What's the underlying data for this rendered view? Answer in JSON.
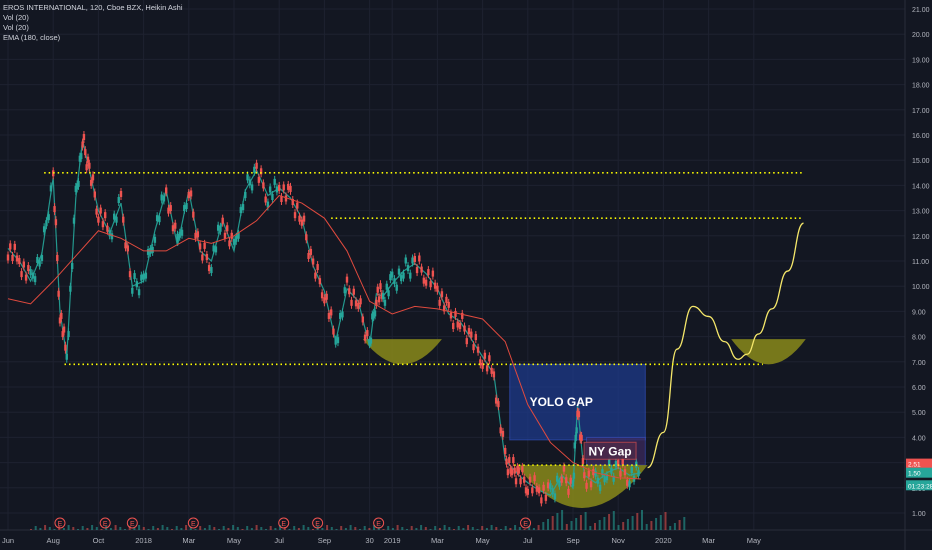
{
  "legend": {
    "symbol_line": "EROS INTERNATIONAL, 120, Cboe BZX, Heikin Ashi",
    "indicators": [
      "Vol (20)",
      "Vol (20)",
      "EMA (180, close)"
    ]
  },
  "chart_data": {
    "type": "line",
    "title": "",
    "ylim": [
      0,
      21.5
    ],
    "y_ticks": [
      "21.00",
      "20.00",
      "19.00",
      "18.00",
      "17.00",
      "16.00",
      "15.00",
      "14.00",
      "13.00",
      "12.00",
      "11.00",
      "10.00",
      "9.00",
      "8.00",
      "7.00",
      "6.00",
      "5.00",
      "4.00",
      "3.00",
      "2.00",
      "1.00"
    ],
    "y_tick_values": [
      21,
      20,
      19,
      18,
      17,
      16,
      15,
      14,
      13,
      12,
      11,
      10,
      9,
      8,
      7,
      6,
      5,
      4,
      3,
      2,
      1
    ],
    "x_ticks": [
      "Jun",
      "Aug",
      "Oct",
      "2018",
      "Mar",
      "May",
      "Jul",
      "Sep",
      "30",
      "2019",
      "Mar",
      "May",
      "Jul",
      "Sep",
      "Nov",
      "2020",
      "Mar",
      "May"
    ],
    "x_tick_index": [
      0,
      2,
      4,
      6,
      8,
      10,
      12,
      14,
      16,
      17,
      19,
      21,
      23,
      25,
      27,
      29,
      31,
      33
    ],
    "price_labels": [
      {
        "text": "2.51",
        "color": "#ef5350"
      },
      {
        "text": "1.50",
        "color": "#26a69a"
      },
      {
        "text": "01:23:28",
        "color": "#26a69a"
      }
    ],
    "earnings_markers": [
      "E",
      "E",
      "E",
      "E",
      "E",
      "E",
      "E",
      "E"
    ],
    "earnings_month_index": [
      2.3,
      4.3,
      5.5,
      8.2,
      12.2,
      13.7,
      16.4,
      22.9
    ],
    "series": [
      {
        "kind": "price",
        "month_index": [
          0,
          0.5,
          1,
          1.5,
          2,
          2.3,
          2.6,
          3,
          3.3,
          3.6,
          4,
          4.5,
          5,
          5.5,
          6,
          6.5,
          7,
          7.5,
          8,
          8.5,
          9,
          9.5,
          10,
          10.5,
          11,
          11.5,
          12,
          12.5,
          13,
          13.5,
          14,
          14.5,
          15,
          15.5,
          16,
          16.3,
          16.6,
          17,
          17.5,
          18,
          18.5,
          19,
          19.5,
          20,
          20.5,
          21,
          21.5,
          22,
          22.3,
          22.6,
          23,
          23.5,
          24,
          24.5,
          25,
          25.2,
          25.5,
          26,
          26.5,
          27,
          27.5,
          28
        ],
        "values": [
          11.5,
          11,
          10.2,
          11.3,
          14.3,
          9,
          7.2,
          13.5,
          15.8,
          14.6,
          13,
          12.1,
          13.3,
          10,
          10.2,
          12.2,
          13.8,
          11.6,
          13.8,
          11.4,
          11,
          12.6,
          11.4,
          13.8,
          14.6,
          13.6,
          13.9,
          13.5,
          12.7,
          10.8,
          9.8,
          7.8,
          9.9,
          9.4,
          7.6,
          9.7,
          9.6,
          10.1,
          10.6,
          10.9,
          10.5,
          9.9,
          8.9,
          8.6,
          7.9,
          7.2,
          6.5,
          3.1,
          2.8,
          2.5,
          2.2,
          1.9,
          1.7,
          2.5,
          2,
          5.3,
          2.5,
          2.2,
          2.6,
          2.8,
          2.5,
          2.6
        ]
      },
      {
        "kind": "ema",
        "name": "EMA (180, close)",
        "month_index": [
          0,
          1,
          2,
          3,
          4,
          5,
          6,
          7,
          8,
          9,
          10,
          11,
          12,
          13,
          14,
          15,
          16,
          17,
          18,
          19,
          20,
          21,
          22,
          23,
          24,
          25,
          26,
          27,
          28
        ],
        "values": [
          9.5,
          9.3,
          10.2,
          11.2,
          12.2,
          11.9,
          11.4,
          11.4,
          11.9,
          11.7,
          12,
          12.6,
          13.6,
          13.3,
          12.7,
          11.4,
          9.4,
          8.9,
          9.2,
          9.1,
          8.9,
          8.7,
          7.8,
          5.3,
          3.8,
          3.0,
          2.6,
          2.4,
          2.35
        ]
      },
      {
        "kind": "projection",
        "month_index": [
          28.3,
          29,
          29.6,
          30.3,
          31,
          31.7,
          32.3,
          32.7,
          33.2,
          33.8,
          34.5,
          35.2
        ],
        "values": [
          2.8,
          4.2,
          7.5,
          9.2,
          8.8,
          7.8,
          7.1,
          7.3,
          8.1,
          9.1,
          10.6,
          12.5
        ]
      }
    ],
    "annotations": [
      {
        "kind": "hline",
        "label": "",
        "value": 14.5,
        "from_index": 1.6,
        "to_index": 35.2,
        "color": "#ffff00"
      },
      {
        "kind": "hline",
        "label": "",
        "value": 12.7,
        "from_index": 14.3,
        "to_index": 35.2,
        "color": "#ffff00"
      },
      {
        "kind": "hline",
        "label": "",
        "value": 6.9,
        "from_index": 2.5,
        "to_index": 33.4,
        "color": "#ffff00"
      },
      {
        "kind": "hline",
        "label": "",
        "value": 2.9,
        "from_index": 22.4,
        "to_index": 27.9,
        "color": "#ffff00"
      },
      {
        "kind": "box",
        "label": "YOLO GAP",
        "x_from": 22.2,
        "x_to": 28.2,
        "y_from": 3.9,
        "y_to": 6.9,
        "color": "#1e3a8a"
      },
      {
        "kind": "box",
        "label": "NY Gap",
        "x_from": 25.6,
        "x_to": 28.2,
        "y_from": 2.9,
        "y_to": 4.0,
        "color": "#3b2a5c"
      },
      {
        "kind": "cup",
        "label": "",
        "x_from": 15.7,
        "x_to": 19.2,
        "y_top": 7.9,
        "y_bottom": 6.9
      },
      {
        "kind": "cup",
        "label": "",
        "x_from": 22.5,
        "x_to": 28.3,
        "y_top": 2.9,
        "y_bottom": 1.2
      },
      {
        "kind": "cup",
        "label": "",
        "x_from": 32,
        "x_to": 35.3,
        "y_top": 7.9,
        "y_bottom": 6.9
      }
    ],
    "colors": {
      "up": "#26a69a",
      "down": "#ef5350",
      "ema": "#e04a3e",
      "projection": "#f5e76a",
      "hline": "#ffff00",
      "cup": "#8a8a1a",
      "yolo_box": "#1e3a8a",
      "ny_box": "#3b2a5c"
    }
  }
}
